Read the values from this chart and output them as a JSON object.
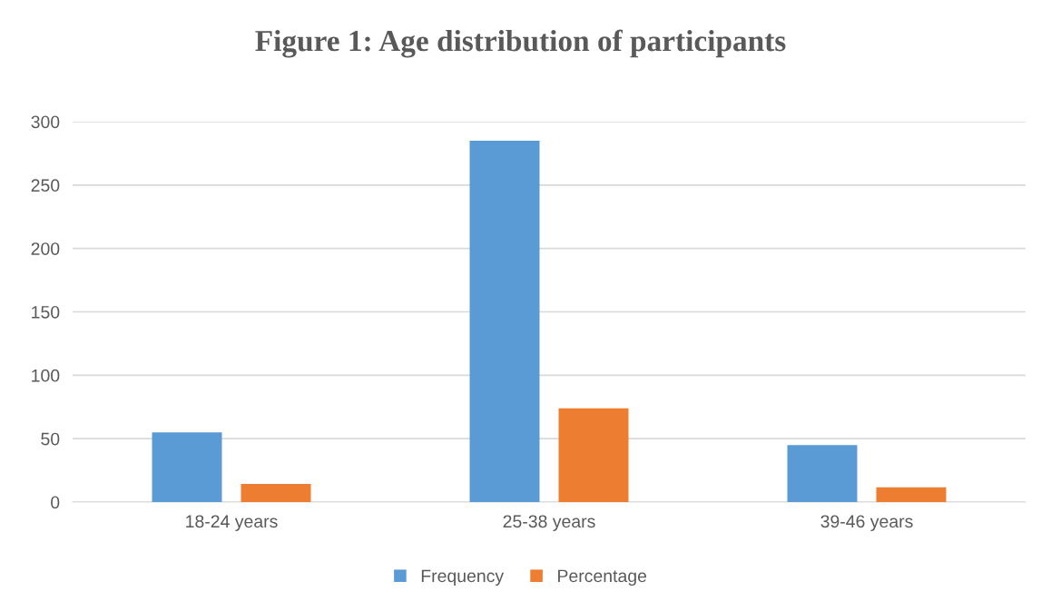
{
  "chart_data": {
    "type": "bar",
    "title": "Figure 1: Age distribution of participants",
    "categories": [
      "18-24 years",
      "25-38 years",
      "39-46 years"
    ],
    "series": [
      {
        "name": "Frequency",
        "color": "#5b9bd5",
        "values": [
          55,
          285,
          45
        ]
      },
      {
        "name": "Percentage",
        "color": "#ed7d31",
        "values": [
          14.3,
          74.0,
          11.7
        ]
      }
    ],
    "ylim": [
      0,
      300
    ],
    "yticks": [
      0,
      50,
      100,
      150,
      200,
      250,
      300
    ],
    "grid": "y",
    "legend": "bottom"
  }
}
